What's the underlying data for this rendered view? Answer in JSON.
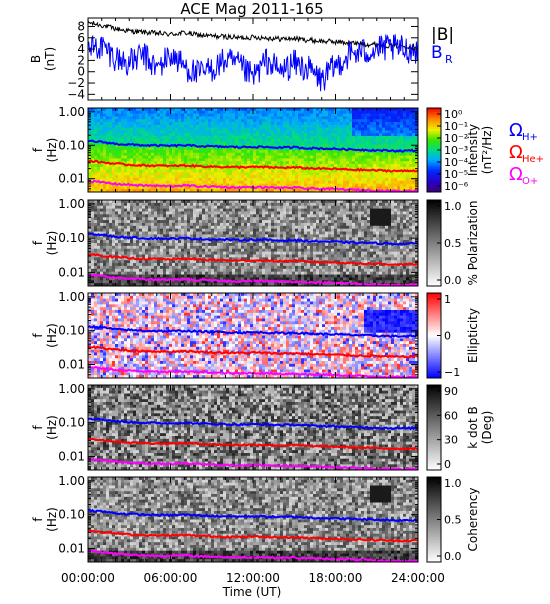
{
  "title": "ACE Mag 2011-165",
  "xaxis": {
    "label": "Time (UT)",
    "ticks": [
      "00:00:00",
      "06:00:00",
      "12:00:00",
      "18:00:00",
      "24:00:00"
    ],
    "range_hours": [
      0,
      24
    ]
  },
  "colors": {
    "btotal": "#000000",
    "br": "#0000ff",
    "h_plus": "#0000ff",
    "he_plus": "#ff0000",
    "o_plus": "#ff00ff"
  },
  "legend": {
    "btotal": "|B|",
    "br": "B",
    "br_sub": "R",
    "omega": "Ω",
    "h_sub": "H+",
    "he_sub": "He+",
    "o_sub": "O+"
  },
  "chart_data": [
    {
      "type": "line",
      "ylabel": "B",
      "ylabel2": "(nT)",
      "ylim": [
        -5,
        9.5
      ],
      "yticks": [
        "8",
        "6",
        "4",
        "2",
        "0",
        "−2",
        "−4"
      ],
      "ytick_values": [
        8,
        6,
        4,
        2,
        0,
        -2,
        -4
      ],
      "series": [
        {
          "key": "btotal",
          "name": "|B|",
          "x": [
            0,
            1,
            2,
            3,
            4,
            5,
            6,
            7,
            8,
            9,
            10,
            11,
            12,
            13,
            14,
            15,
            16,
            17,
            18,
            19,
            20,
            21,
            22,
            23,
            24
          ],
          "values": [
            8.7,
            8.2,
            7.6,
            7.2,
            7.0,
            6.8,
            6.6,
            6.9,
            6.5,
            6.3,
            6.2,
            6.0,
            6.1,
            6.0,
            5.8,
            5.9,
            5.6,
            5.4,
            5.3,
            5.1,
            4.9,
            4.8,
            4.6,
            4.5,
            4.6
          ]
        },
        {
          "key": "br",
          "name": "B_R",
          "x": [
            0,
            1,
            2,
            3,
            4,
            5,
            6,
            7,
            8,
            9,
            10,
            11,
            12,
            13,
            14,
            15,
            16,
            17,
            18,
            19,
            20,
            21,
            22,
            23,
            24
          ],
          "values": [
            4.0,
            4.5,
            2.5,
            1.5,
            3.0,
            0.5,
            3.0,
            1.0,
            -0.5,
            0.5,
            2.0,
            1.0,
            -1.0,
            2.0,
            0.0,
            1.5,
            0.5,
            -1.5,
            1.0,
            3.0,
            3.5,
            4.0,
            4.2,
            4.0,
            3.8
          ]
        }
      ]
    },
    {
      "type": "heatmap",
      "ylabel": "f",
      "ylabel2": "(Hz)",
      "yscale": "log",
      "ylim": [
        0.004,
        1.3
      ],
      "yticks": [
        "1.00",
        "0.10",
        "0.01"
      ],
      "ytick_values": [
        1.0,
        0.1,
        0.01
      ],
      "colorbar": "rainbow",
      "colorbar_label": "Intensity",
      "colorbar_label2": "(nT²/Hz)",
      "colorbar_ticks": [
        "10⁰",
        "10⁻¹",
        "10⁻²",
        "10⁻³",
        "10⁻⁴",
        "10⁻⁵",
        "10⁻⁶"
      ],
      "colorbar_range": [
        -6.5,
        0.2
      ]
    },
    {
      "type": "heatmap",
      "ylabel": "f",
      "ylabel2": "(Hz)",
      "yscale": "log",
      "ylim": [
        0.004,
        1.3
      ],
      "yticks": [
        "1.00",
        "0.10",
        "0.01"
      ],
      "ytick_values": [
        1.0,
        0.1,
        0.01
      ],
      "colorbar": "gray",
      "colorbar_label": "% Polarization",
      "colorbar_ticks": [
        "1.0",
        "0.5",
        "0.0"
      ],
      "colorbar_range": [
        0,
        1
      ]
    },
    {
      "type": "heatmap",
      "ylabel": "f",
      "ylabel2": "(Hz)",
      "yscale": "log",
      "ylim": [
        0.004,
        1.3
      ],
      "yticks": [
        "1.00",
        "0.10",
        "0.01"
      ],
      "ytick_values": [
        1.0,
        0.1,
        0.01
      ],
      "colorbar": "bwr",
      "colorbar_label": "Ellipticity",
      "colorbar_ticks": [
        "1",
        "0",
        "−1"
      ],
      "colorbar_range": [
        -1,
        1
      ]
    },
    {
      "type": "heatmap",
      "ylabel": "f",
      "ylabel2": "(Hz)",
      "yscale": "log",
      "ylim": [
        0.004,
        1.3
      ],
      "yticks": [
        "1.00",
        "0.10",
        "0.01"
      ],
      "ytick_values": [
        1.0,
        0.1,
        0.01
      ],
      "colorbar": "gray",
      "colorbar_label": "k dot B",
      "colorbar_label2": "(Deg)",
      "colorbar_ticks": [
        "90",
        "60",
        "30",
        "0"
      ],
      "colorbar_range": [
        0,
        90
      ]
    },
    {
      "type": "heatmap",
      "ylabel": "f",
      "ylabel2": "(Hz)",
      "yscale": "log",
      "ylim": [
        0.004,
        1.3
      ],
      "yticks": [
        "1.00",
        "0.10",
        "0.01"
      ],
      "ytick_values": [
        1.0,
        0.1,
        0.01
      ],
      "colorbar": "gray",
      "colorbar_label": "Coherency",
      "colorbar_ticks": [
        "1.0",
        "0.5",
        "0.0"
      ],
      "colorbar_range": [
        0,
        1
      ]
    }
  ],
  "gyrofrequency_lines": {
    "x": [
      0,
      1,
      2,
      3,
      4,
      5,
      6,
      7,
      8,
      9,
      10,
      11,
      12,
      13,
      14,
      15,
      16,
      17,
      18,
      19,
      20,
      21,
      22,
      23,
      24
    ],
    "h_plus": [
      0.135,
      0.125,
      0.11,
      0.105,
      0.1,
      0.098,
      0.096,
      0.1,
      0.095,
      0.092,
      0.09,
      0.088,
      0.09,
      0.088,
      0.085,
      0.087,
      0.082,
      0.08,
      0.078,
      0.075,
      0.073,
      0.071,
      0.069,
      0.068,
      0.07
    ],
    "he_plus": [
      0.034,
      0.031,
      0.028,
      0.026,
      0.025,
      0.0245,
      0.024,
      0.025,
      0.0238,
      0.023,
      0.0225,
      0.022,
      0.0225,
      0.022,
      0.0212,
      0.0217,
      0.0205,
      0.02,
      0.0195,
      0.0187,
      0.0182,
      0.0177,
      0.0172,
      0.017,
      0.0175
    ],
    "o_plus": [
      0.0084,
      0.0078,
      0.007,
      0.0066,
      0.0063,
      0.0061,
      0.006,
      0.0063,
      0.0059,
      0.0058,
      0.0056,
      0.0055,
      0.0056,
      0.0055,
      0.0053,
      0.0054,
      0.0051,
      0.005,
      0.0049,
      0.0047,
      0.0046,
      0.0044,
      0.0043,
      0.0042,
      0.0044
    ]
  }
}
